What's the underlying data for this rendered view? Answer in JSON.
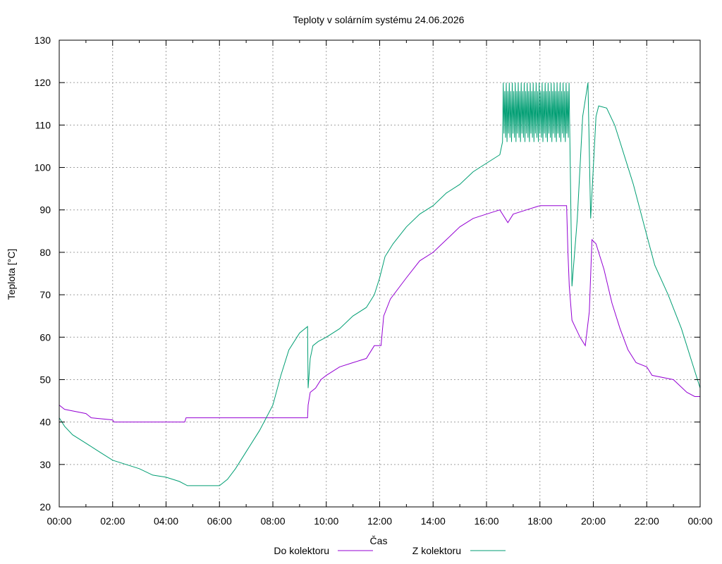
{
  "chart_data": {
    "type": "line",
    "title": "Teploty v solárním systému 24.06.2026",
    "xlabel": "Čas",
    "ylabel": "Teplota [°C]",
    "xlim": [
      "00:00",
      "24:00"
    ],
    "ylim": [
      20,
      130
    ],
    "x_ticks": [
      "00:00",
      "02:00",
      "04:00",
      "06:00",
      "08:00",
      "10:00",
      "12:00",
      "14:00",
      "16:00",
      "18:00",
      "20:00",
      "22:00",
      "00:00"
    ],
    "y_ticks": [
      20,
      30,
      40,
      50,
      60,
      70,
      80,
      90,
      100,
      110,
      120,
      130
    ],
    "grid": true,
    "legend": "bottom",
    "x_unit": "hours",
    "series": [
      {
        "name": "Do kolektoru",
        "color": "#9400d3",
        "points": [
          [
            0,
            44
          ],
          [
            0.2,
            43
          ],
          [
            1,
            42
          ],
          [
            1.2,
            41
          ],
          [
            2,
            40.5
          ],
          [
            2.05,
            40
          ],
          [
            4.7,
            40
          ],
          [
            4.75,
            41
          ],
          [
            9.3,
            41
          ],
          [
            9.32,
            44
          ],
          [
            9.4,
            47
          ],
          [
            9.6,
            48
          ],
          [
            9.8,
            50
          ],
          [
            10,
            51
          ],
          [
            10.5,
            53
          ],
          [
            11,
            54
          ],
          [
            11.5,
            55
          ],
          [
            11.8,
            58
          ],
          [
            12.05,
            58
          ],
          [
            12.15,
            65
          ],
          [
            12.4,
            69
          ],
          [
            13,
            74
          ],
          [
            13.5,
            78
          ],
          [
            14,
            80
          ],
          [
            14.5,
            83
          ],
          [
            15,
            86
          ],
          [
            15.5,
            88
          ],
          [
            16,
            89
          ],
          [
            16.5,
            90
          ],
          [
            16.8,
            87
          ],
          [
            17,
            89
          ],
          [
            17.5,
            90
          ],
          [
            18,
            91
          ],
          [
            19,
            91
          ],
          [
            19.05,
            80
          ],
          [
            19.1,
            72
          ],
          [
            19.2,
            64
          ],
          [
            19.5,
            60
          ],
          [
            19.7,
            58
          ],
          [
            19.85,
            66
          ],
          [
            19.95,
            83
          ],
          [
            20.1,
            82
          ],
          [
            20.4,
            76
          ],
          [
            20.7,
            68
          ],
          [
            21,
            62
          ],
          [
            21.3,
            57
          ],
          [
            21.6,
            54
          ],
          [
            22,
            53
          ],
          [
            22.2,
            51
          ],
          [
            23,
            50
          ],
          [
            23.5,
            47
          ],
          [
            23.8,
            46
          ],
          [
            24,
            46
          ]
        ]
      },
      {
        "name": "Z kolektoru",
        "color": "#009e73",
        "points": [
          [
            0,
            41
          ],
          [
            0.2,
            39
          ],
          [
            0.5,
            37
          ],
          [
            1,
            35
          ],
          [
            1.5,
            33
          ],
          [
            2,
            31
          ],
          [
            2.5,
            30
          ],
          [
            3,
            29
          ],
          [
            3.5,
            27.5
          ],
          [
            4,
            27
          ],
          [
            4.5,
            26
          ],
          [
            4.8,
            25
          ],
          [
            6,
            25
          ],
          [
            6.3,
            26.5
          ],
          [
            6.6,
            29
          ],
          [
            7,
            33
          ],
          [
            7.5,
            38
          ],
          [
            8,
            44
          ],
          [
            8.3,
            51
          ],
          [
            8.6,
            57
          ],
          [
            9,
            61
          ],
          [
            9.3,
            62.5
          ],
          [
            9.32,
            48
          ],
          [
            9.4,
            55
          ],
          [
            9.5,
            58
          ],
          [
            9.7,
            59
          ],
          [
            10,
            60
          ],
          [
            10.5,
            62
          ],
          [
            11,
            65
          ],
          [
            11.5,
            67
          ],
          [
            11.8,
            70
          ],
          [
            12,
            74
          ],
          [
            12.2,
            79
          ],
          [
            12.5,
            82
          ],
          [
            13,
            86
          ],
          [
            13.5,
            89
          ],
          [
            14,
            91
          ],
          [
            14.5,
            94
          ],
          [
            15,
            96
          ],
          [
            15.5,
            99
          ],
          [
            16,
            101
          ],
          [
            16.5,
            103
          ],
          [
            16.7,
            107
          ],
          [
            17,
            112
          ],
          [
            18,
            113
          ],
          [
            19,
            113
          ],
          [
            19.1,
            95
          ],
          [
            19.2,
            72
          ],
          [
            19.4,
            88
          ],
          [
            19.6,
            112
          ],
          [
            19.8,
            120
          ],
          [
            19.9,
            88
          ],
          [
            20,
            100
          ],
          [
            20.1,
            112
          ],
          [
            20.2,
            114.5
          ],
          [
            20.5,
            114
          ],
          [
            20.8,
            110
          ],
          [
            21,
            106
          ],
          [
            21.5,
            96
          ],
          [
            22,
            84
          ],
          [
            22.3,
            77
          ],
          [
            22.8,
            70
          ],
          [
            23.3,
            62
          ],
          [
            23.7,
            54
          ],
          [
            24,
            48
          ]
        ],
        "oscillation": {
          "from": 16.6,
          "to": 19.1,
          "low": 106,
          "high": 121
        }
      }
    ]
  }
}
